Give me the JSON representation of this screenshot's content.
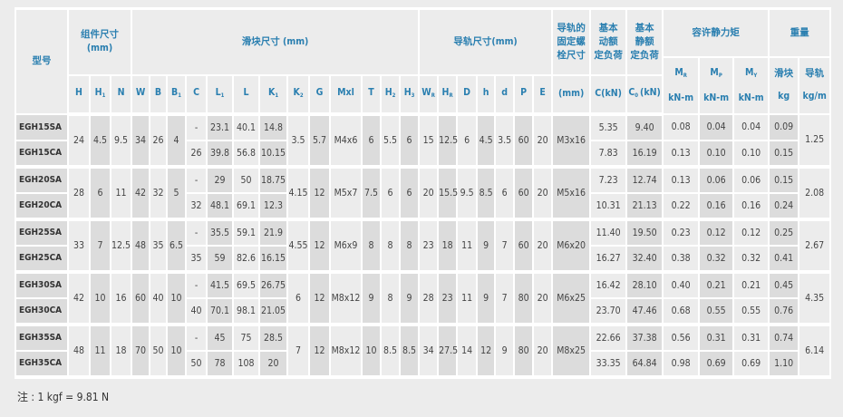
{
  "header": {
    "model": "型号",
    "assembly": "组件尺寸\n(mm)",
    "block": "滑块尺寸 (mm)",
    "rail": "导轨尺寸(mm)",
    "bolt": "导轨的\n固定螺\n栓尺寸",
    "dynamic": "基本\n动额\n定负荷",
    "static": "基本\n静额\n定负荷",
    "moment": "容许静力矩",
    "weight": "重量",
    "bolt_unit": "(mm)",
    "dynamic_unit": "C(kN)",
    "static_unit": "(kN)",
    "static_sym": "C",
    "static_sub": "0",
    "moment_cols": [
      {
        "t": "M",
        "s": "R",
        "u": "kN-m"
      },
      {
        "t": "M",
        "s": "P",
        "u": "kN-m"
      },
      {
        "t": "M",
        "s": "Y",
        "u": "kN-m"
      }
    ],
    "weight_cols": [
      {
        "t": "滑块",
        "u": "kg"
      },
      {
        "t": "导轨",
        "u": "kg/m"
      }
    ],
    "dim_cols": [
      {
        "t": "H",
        "s": ""
      },
      {
        "t": "H",
        "s": "1"
      },
      {
        "t": "N",
        "s": ""
      },
      {
        "t": "W",
        "s": ""
      },
      {
        "t": "B",
        "s": ""
      },
      {
        "t": "B",
        "s": "1"
      },
      {
        "t": "C",
        "s": ""
      },
      {
        "t": "L",
        "s": "1"
      },
      {
        "t": "L",
        "s": ""
      },
      {
        "t": "K",
        "s": "1"
      },
      {
        "t": "K",
        "s": "2"
      },
      {
        "t": "G",
        "s": ""
      },
      {
        "t": "Mxl",
        "s": ""
      },
      {
        "t": "T",
        "s": ""
      },
      {
        "t": "H",
        "s": "2"
      },
      {
        "t": "H",
        "s": "3"
      },
      {
        "t": "W",
        "s": "R"
      },
      {
        "t": "H",
        "s": "R"
      },
      {
        "t": "D",
        "s": ""
      },
      {
        "t": "h",
        "s": ""
      },
      {
        "t": "d",
        "s": ""
      },
      {
        "t": "P",
        "s": ""
      },
      {
        "t": "E",
        "s": ""
      }
    ]
  },
  "groups": [
    {
      "shared": {
        "H": "24",
        "H1": "4.5",
        "N": "9.5",
        "W": "34",
        "B": "26",
        "B1": "4",
        "K2": "3.5",
        "G": "5.7",
        "Mxl": "M4x6",
        "T": "6",
        "H2": "5.5",
        "H3": "6",
        "WR": "15",
        "HR": "12.5",
        "D": "6",
        "h": "4.5",
        "d": "3.5",
        "P": "60",
        "E": "20",
        "bolt": "M3x16",
        "rail": "1.25"
      },
      "variants": [
        {
          "model": "EGH15SA",
          "C": "-",
          "L1": "23.1",
          "L": "40.1",
          "K1": "14.8",
          "Cd": "5.35",
          "C0": "9.40",
          "MR": "0.08",
          "MP": "0.04",
          "MY": "0.04",
          "kg": "0.09"
        },
        {
          "model": "EGH15CA",
          "C": "26",
          "L1": "39.8",
          "L": "56.8",
          "K1": "10.15",
          "Cd": "7.83",
          "C0": "16.19",
          "MR": "0.13",
          "MP": "0.10",
          "MY": "0.10",
          "kg": "0.15"
        }
      ]
    },
    {
      "shared": {
        "H": "28",
        "H1": "6",
        "N": "11",
        "W": "42",
        "B": "32",
        "B1": "5",
        "K2": "4.15",
        "G": "12",
        "Mxl": "M5x7",
        "T": "7.5",
        "H2": "6",
        "H3": "6",
        "WR": "20",
        "HR": "15.5",
        "D": "9.5",
        "h": "8.5",
        "d": "6",
        "P": "60",
        "E": "20",
        "bolt": "M5x16",
        "rail": "2.08"
      },
      "variants": [
        {
          "model": "EGH20SA",
          "C": "-",
          "L1": "29",
          "L": "50",
          "K1": "18.75",
          "Cd": "7.23",
          "C0": "12.74",
          "MR": "0.13",
          "MP": "0.06",
          "MY": "0.06",
          "kg": "0.15"
        },
        {
          "model": "EGH20CA",
          "C": "32",
          "L1": "48.1",
          "L": "69.1",
          "K1": "12.3",
          "Cd": "10.31",
          "C0": "21.13",
          "MR": "0.22",
          "MP": "0.16",
          "MY": "0.16",
          "kg": "0.24"
        }
      ]
    },
    {
      "shared": {
        "H": "33",
        "H1": "7",
        "N": "12.5",
        "W": "48",
        "B": "35",
        "B1": "6.5",
        "K2": "4.55",
        "G": "12",
        "Mxl": "M6x9",
        "T": "8",
        "H2": "8",
        "H3": "8",
        "WR": "23",
        "HR": "18",
        "D": "11",
        "h": "9",
        "d": "7",
        "P": "60",
        "E": "20",
        "bolt": "M6x20",
        "rail": "2.67"
      },
      "variants": [
        {
          "model": "EGH25SA",
          "C": "-",
          "L1": "35.5",
          "L": "59.1",
          "K1": "21.9",
          "Cd": "11.40",
          "C0": "19.50",
          "MR": "0.23",
          "MP": "0.12",
          "MY": "0.12",
          "kg": "0.25"
        },
        {
          "model": "EGH25CA",
          "C": "35",
          "L1": "59",
          "L": "82.6",
          "K1": "16.15",
          "Cd": "16.27",
          "C0": "32.40",
          "MR": "0.38",
          "MP": "0.32",
          "MY": "0.32",
          "kg": "0.41"
        }
      ]
    },
    {
      "shared": {
        "H": "42",
        "H1": "10",
        "N": "16",
        "W": "60",
        "B": "40",
        "B1": "10",
        "K2": "6",
        "G": "12",
        "Mxl": "M8x12",
        "T": "9",
        "H2": "8",
        "H3": "9",
        "WR": "28",
        "HR": "23",
        "D": "11",
        "h": "9",
        "d": "7",
        "P": "80",
        "E": "20",
        "bolt": "M6x25",
        "rail": "4.35"
      },
      "variants": [
        {
          "model": "EGH30SA",
          "C": "-",
          "L1": "41.5",
          "L": "69.5",
          "K1": "26.75",
          "Cd": "16.42",
          "C0": "28.10",
          "MR": "0.40",
          "MP": "0.21",
          "MY": "0.21",
          "kg": "0.45"
        },
        {
          "model": "EGH30CA",
          "C": "40",
          "L1": "70.1",
          "L": "98.1",
          "K1": "21.05",
          "Cd": "23.70",
          "C0": "47.46",
          "MR": "0.68",
          "MP": "0.55",
          "MY": "0.55",
          "kg": "0.76"
        }
      ]
    },
    {
      "shared": {
        "H": "48",
        "H1": "11",
        "N": "18",
        "W": "70",
        "B": "50",
        "B1": "10",
        "K2": "7",
        "G": "12",
        "Mxl": "M8x12",
        "T": "10",
        "H2": "8.5",
        "H3": "8.5",
        "WR": "34",
        "HR": "27.5",
        "D": "14",
        "h": "12",
        "d": "9",
        "P": "80",
        "E": "20",
        "bolt": "M8x25",
        "rail": "6.14"
      },
      "variants": [
        {
          "model": "EGH35SA",
          "C": "-",
          "L1": "45",
          "L": "75",
          "K1": "28.5",
          "Cd": "22.66",
          "C0": "37.38",
          "MR": "0.56",
          "MP": "0.31",
          "MY": "0.31",
          "kg": "0.74"
        },
        {
          "model": "EGH35CA",
          "C": "50",
          "L1": "78",
          "L": "108",
          "K1": "20",
          "Cd": "33.35",
          "C0": "64.84",
          "MR": "0.98",
          "MP": "0.69",
          "MY": "0.69",
          "kg": "1.10"
        }
      ]
    }
  ],
  "note": "注 : 1 kgf = 9.81 N"
}
